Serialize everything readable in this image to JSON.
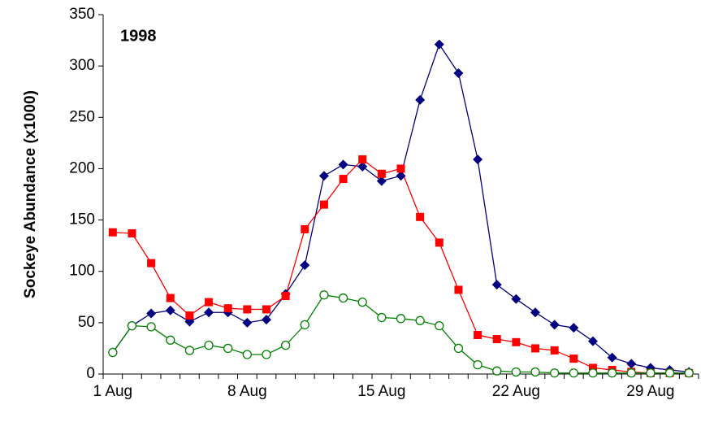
{
  "chart_data": {
    "type": "line",
    "annotation": "1998",
    "y_label": "Sockeye Abundance (x1000)",
    "categories": [
      "1 Aug",
      null,
      null,
      null,
      null,
      null,
      null,
      "8 Aug",
      null,
      null,
      null,
      null,
      null,
      null,
      "15 Aug",
      null,
      null,
      null,
      null,
      null,
      null,
      "22 Aug",
      null,
      null,
      null,
      null,
      null,
      null,
      "29 Aug",
      null,
      null
    ],
    "series": [
      {
        "color": "#000080",
        "marker": "diamond",
        "values": [
          21,
          47,
          59,
          62,
          51,
          60,
          60,
          50,
          53,
          78,
          106,
          193,
          204,
          202,
          188,
          193,
          267,
          321,
          293,
          209,
          87,
          73,
          60,
          48,
          45,
          32,
          16,
          10,
          6,
          4,
          2
        ]
      },
      {
        "color": "#ff0000",
        "marker": "square",
        "values": [
          138,
          137,
          108,
          74,
          57,
          70,
          64,
          63,
          63,
          76,
          141,
          165,
          190,
          209,
          195,
          200,
          153,
          128,
          82,
          38,
          34,
          31,
          25,
          23,
          15,
          6,
          4,
          2,
          1,
          1,
          1
        ]
      },
      {
        "color": "#008000",
        "marker": "open-circle",
        "values": [
          21,
          47,
          46,
          33,
          23,
          28,
          25,
          19,
          19,
          28,
          48,
          77,
          74,
          70,
          55,
          54,
          52,
          47,
          25,
          9,
          3,
          2,
          2,
          1,
          1,
          1,
          1,
          1,
          1,
          1,
          1
        ]
      }
    ],
    "ylim": [
      0,
      350
    ],
    "yticks": [
      0,
      50,
      100,
      150,
      200,
      250,
      300,
      350
    ]
  }
}
